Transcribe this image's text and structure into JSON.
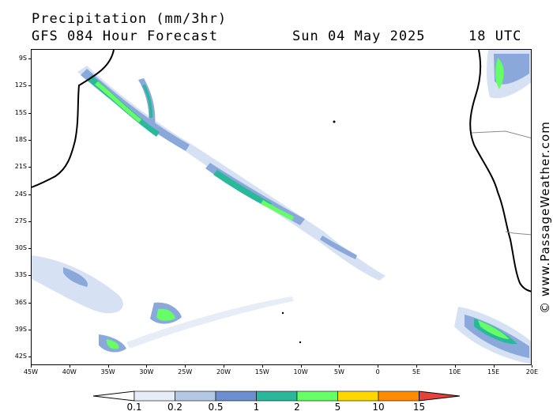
{
  "header": {
    "title": "Precipitation (mm/3hr)",
    "forecast": "GFS 084 Hour Forecast",
    "date": "Sun 04 May 2025",
    "time": "18 UTC"
  },
  "watermark": "© www.PassageWeather.com",
  "axes": {
    "lat_labels": [
      "9S",
      "12S",
      "15S",
      "18S",
      "21S",
      "24S",
      "27S",
      "30S",
      "33S",
      "36S",
      "39S",
      "42S"
    ],
    "lon_labels": [
      "45W",
      "40W",
      "35W",
      "30W",
      "25W",
      "20W",
      "15W",
      "10W",
      "5W",
      "0",
      "5E",
      "10E",
      "15E",
      "20E"
    ]
  },
  "colorbar": {
    "labels": [
      "0.1",
      "0.2",
      "0.5",
      "1",
      "2",
      "5",
      "10",
      "15"
    ],
    "colors": [
      "#e6edf7",
      "#b4c8e3",
      "#6b8fcf",
      "#2bb89a",
      "#66ff66",
      "#ffd700",
      "#ff8c00",
      "#e8413c"
    ]
  },
  "colors": {
    "light_rain": "#d6e2f3",
    "moderate_rain": "#8aa8da",
    "heavy_rain": "#2bb89a",
    "very_heavy_rain": "#66ff66",
    "coastline": "#000000",
    "border": "#8a8a8a"
  }
}
